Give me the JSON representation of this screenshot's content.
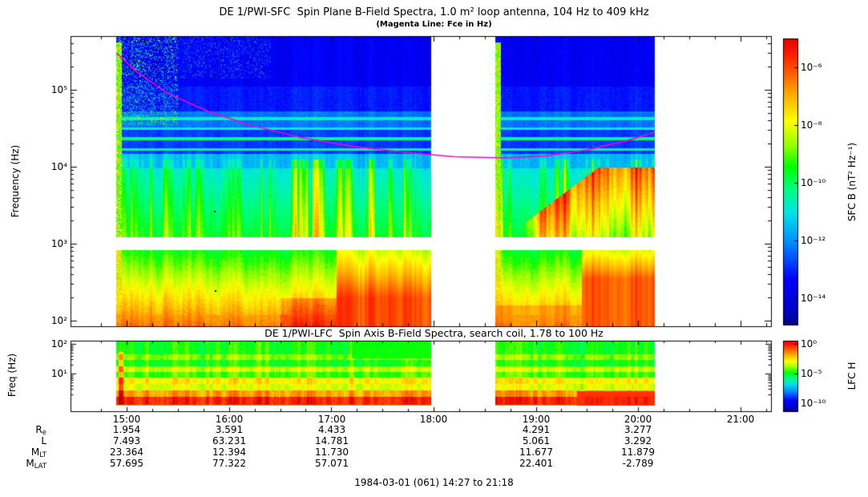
{
  "figure": {
    "footer": "1984-03-01 (061) 14:27 to 21:18"
  },
  "xaxis": {
    "ticks": [
      "15:00",
      "16:00",
      "17:00",
      "18:00",
      "19:00",
      "20:00",
      "21:00"
    ]
  },
  "ephemeris": {
    "tick_times": [
      "15:00",
      "16:00",
      "17:00",
      "19:00",
      "20:00"
    ],
    "rows": [
      {
        "base": "R",
        "sub": "e",
        "values": [
          "1.954",
          "3.591",
          "4.433",
          "4.291",
          "3.277"
        ]
      },
      {
        "base": "L",
        "sub": "",
        "values": [
          "7.493",
          "63.231",
          "14.781",
          "5.061",
          "3.292"
        ]
      },
      {
        "base": "M",
        "sub": "LT",
        "values": [
          "23.364",
          "12.394",
          "11.730",
          "11.677",
          "11.879"
        ]
      },
      {
        "base": "M",
        "sub": "LAT",
        "values": [
          "57.695",
          "77.322",
          "57.071",
          "22.401",
          "-2.789"
        ]
      }
    ]
  },
  "chart_data": [
    {
      "type": "heatmap",
      "name": "sfc-spectrogram",
      "title": "DE 1/PWI-SFC  Spin Plane B-Field Spectra, 1.0 m² loop antenna, 104 Hz to 409 kHz",
      "subtitle": "(Magenta Line: Fce in Hz)",
      "ylabel": "Frequency (Hz)",
      "yaxis": {
        "scale": "log",
        "ticks": [
          "10⁵",
          "10⁴",
          "10³",
          "10²"
        ],
        "range_hz": [
          100,
          500000
        ]
      },
      "xaxis": {
        "start": "14:27",
        "end": "21:18",
        "ticks": [
          "15:00",
          "16:00",
          "17:00",
          "18:00",
          "19:00",
          "20:00",
          "21:00"
        ]
      },
      "colorbar": {
        "label": "SFC B (nT² Hz⁻¹)",
        "ticks": [
          "10⁻⁶",
          "10⁻⁸",
          "10⁻¹⁰",
          "10⁻¹²",
          "10⁻¹⁴"
        ],
        "colormap": "rainbow"
      },
      "data_segments_hours": [
        [
          14.9,
          17.98
        ],
        [
          18.6,
          20.16
        ]
      ],
      "receiver_gap_band_hz": [
        700,
        1100
      ],
      "magenta_line": {
        "label": "Fce",
        "color": "#ff00cc",
        "points_hour_khz": [
          [
            14.9,
            300
          ],
          [
            15.1,
            170
          ],
          [
            15.4,
            90
          ],
          [
            15.8,
            52
          ],
          [
            16.2,
            35
          ],
          [
            16.7,
            24
          ],
          [
            17.2,
            18.5
          ],
          [
            17.7,
            15.5
          ],
          [
            18.2,
            13.5
          ],
          [
            18.7,
            13
          ],
          [
            19.1,
            13.8
          ],
          [
            19.5,
            16.5
          ],
          [
            19.9,
            22
          ],
          [
            20.16,
            28
          ]
        ]
      },
      "features": [
        {
          "name": "banded-emissions",
          "freq_hz": [
            15000,
            45000
          ],
          "desc": "horizontal cyan bands across both data segments"
        },
        {
          "name": "auroral-hiss-wedge",
          "hours": [
            18.65,
            20.1
          ],
          "freq_hz": [
            900,
            11000
          ],
          "desc": "intense red/yellow rising funnel in second segment"
        },
        {
          "name": "intense-low-band",
          "hours": [
            17.05,
            17.98
          ],
          "freq_hz": [
            100,
            500
          ],
          "desc": "saturated red region at bottom of first segment"
        },
        {
          "name": "perigee-broadband-burst",
          "hours": [
            14.9,
            14.96
          ],
          "freq_hz": [
            100,
            400000
          ],
          "desc": "bright green column at data start"
        }
      ]
    },
    {
      "type": "heatmap",
      "name": "lfc-spectrogram",
      "title": "DE 1/PWI-LFC  Spin Axis B-Field Spectra, search coil, 1.78 to 100 Hz",
      "ylabel": "Freq (Hz)",
      "yaxis": {
        "scale": "log",
        "ticks": [
          "10²",
          "10¹"
        ],
        "range_hz": [
          1.78,
          100
        ]
      },
      "colorbar": {
        "label": "LFC H",
        "ticks": [
          "10⁰",
          "10⁻⁵",
          "10⁻¹⁰"
        ],
        "colormap": "rainbow"
      },
      "data_segments_hours": [
        [
          14.9,
          17.98
        ],
        [
          18.6,
          20.16
        ]
      ],
      "desc": "horizontally banded spectrum: green at high frequencies grading to intense orange/red at the lowest frequencies"
    }
  ]
}
